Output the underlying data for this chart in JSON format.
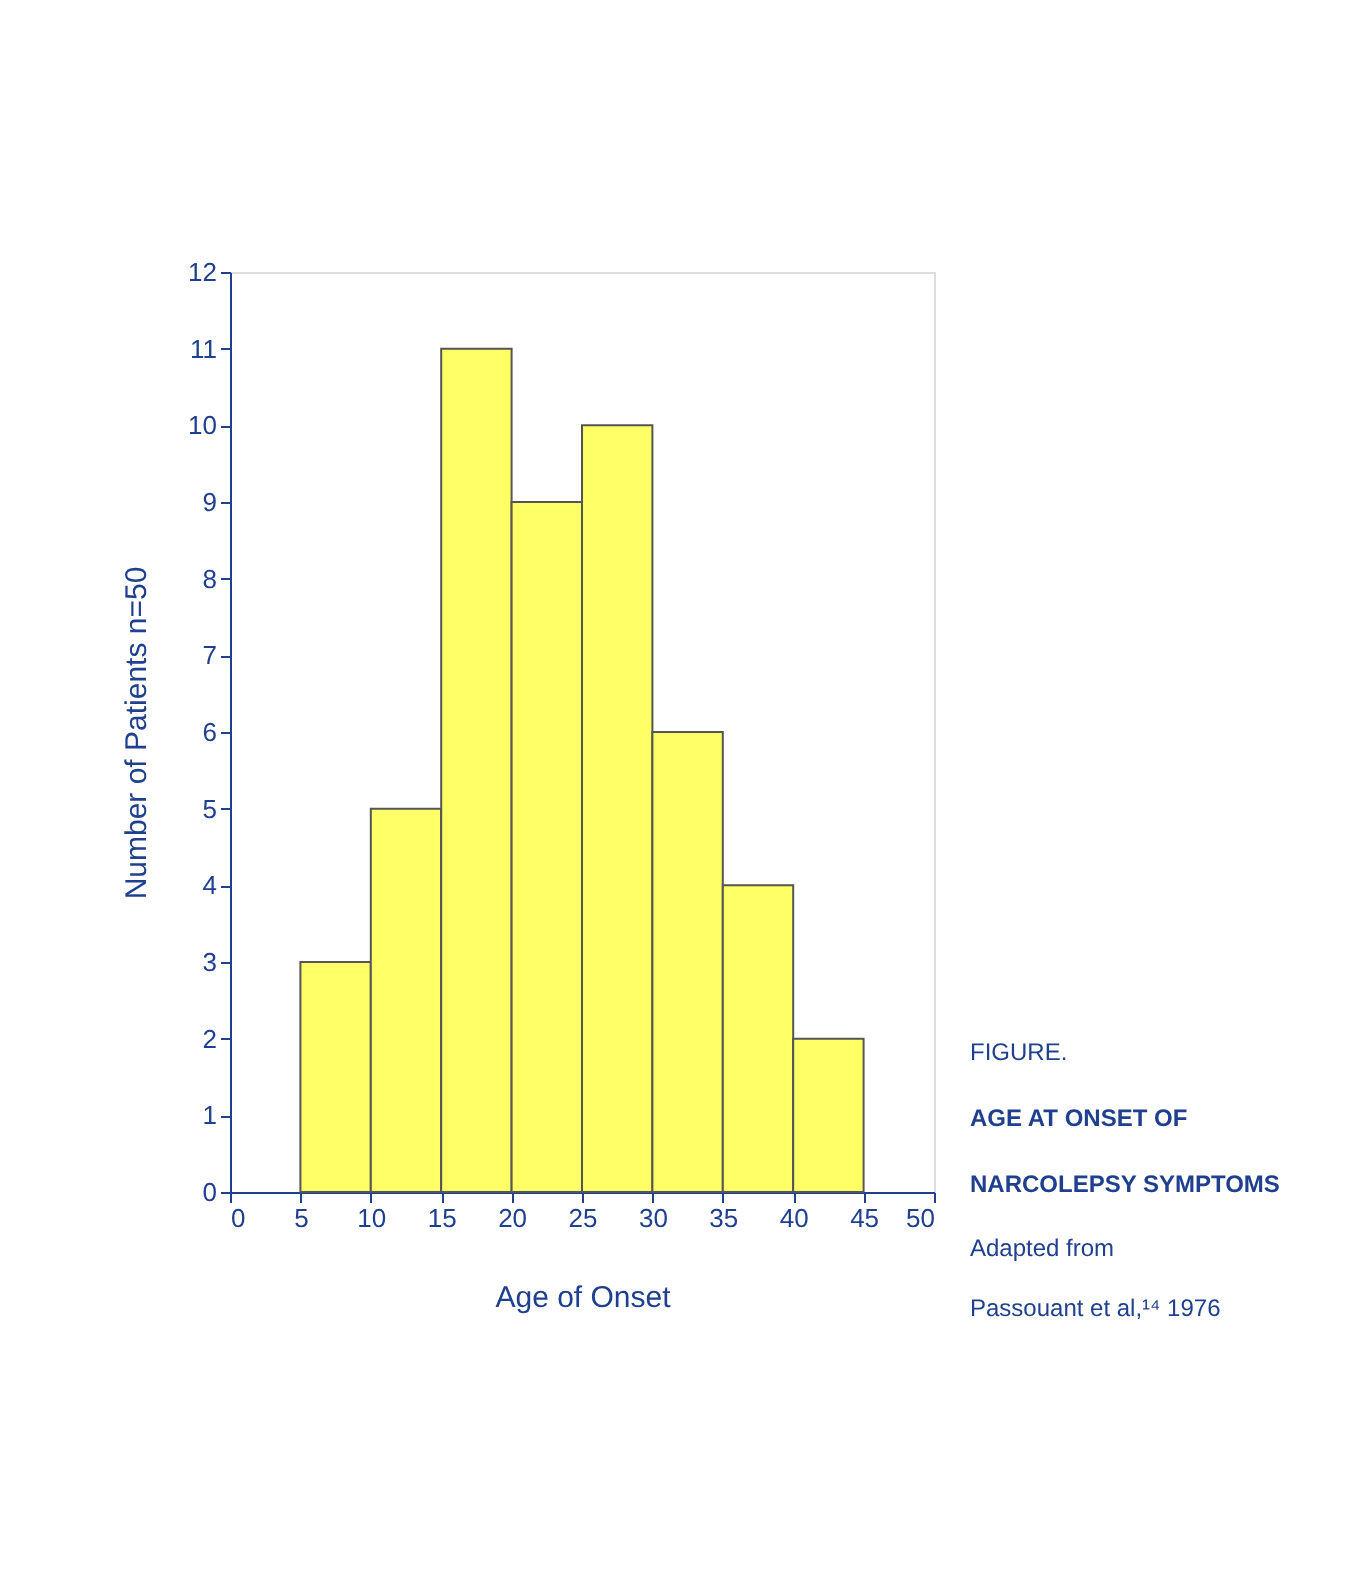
{
  "chart_data": {
    "type": "histogram",
    "xlabel": "Age of Onset",
    "ylabel": "Number of Patients n=50",
    "bins": [
      5,
      10,
      15,
      20,
      25,
      30,
      35,
      40,
      45
    ],
    "values": [
      3,
      5,
      11,
      9,
      10,
      6,
      4,
      2
    ],
    "color": "#ffff66",
    "xlim": [
      0,
      50
    ],
    "xticks": [
      0,
      5,
      10,
      15,
      20,
      25,
      30,
      35,
      40,
      45,
      50
    ],
    "ylim": [
      0,
      12
    ],
    "yticks": [
      0,
      1,
      2,
      3,
      4,
      5,
      6,
      7,
      8,
      9,
      10,
      11,
      12
    ],
    "grid": false,
    "annotations": [
      "FIGURE.",
      "AGE AT ONSET OF",
      "NARCOLEPSY SYMPTOMS",
      "Adapted from",
      "Passouant et al,¹⁴ 1976"
    ]
  }
}
